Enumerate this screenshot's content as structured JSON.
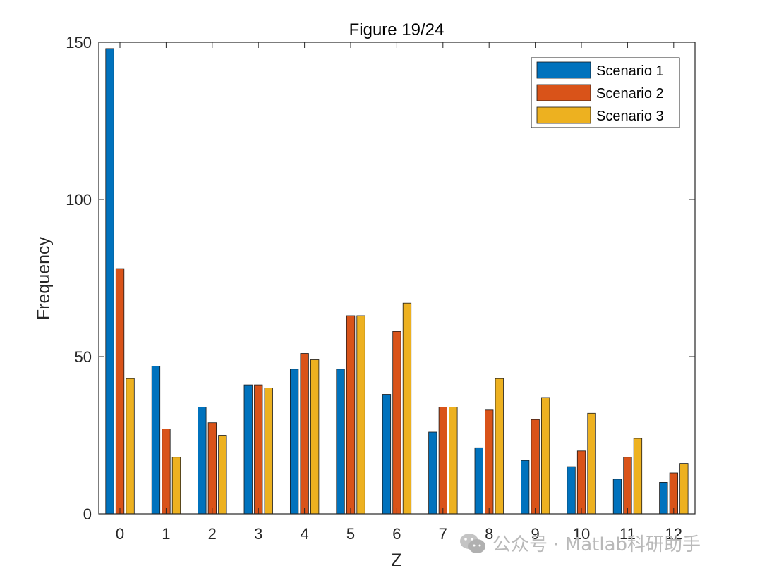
{
  "chart_data": {
    "type": "bar",
    "title": "Figure 19/24",
    "xlabel": "Z",
    "ylabel": "Frequency",
    "categories": [
      "0",
      "1",
      "2",
      "3",
      "4",
      "5",
      "6",
      "7",
      "8",
      "9",
      "10",
      "11",
      "12"
    ],
    "ylim": [
      0,
      150
    ],
    "yticks": [
      0,
      50,
      100,
      150
    ],
    "legend_position": "top-right",
    "series": [
      {
        "name": "Scenario 1",
        "color": "#0072BD",
        "values": [
          148,
          47,
          34,
          41,
          46,
          46,
          38,
          26,
          21,
          17,
          15,
          11,
          10
        ]
      },
      {
        "name": "Scenario 2",
        "color": "#D95319",
        "values": [
          78,
          27,
          29,
          41,
          51,
          63,
          58,
          34,
          33,
          30,
          20,
          18,
          13
        ]
      },
      {
        "name": "Scenario 3",
        "color": "#EDB120",
        "values": [
          43,
          18,
          25,
          40,
          49,
          63,
          67,
          34,
          43,
          37,
          32,
          24,
          16
        ]
      }
    ]
  },
  "watermark": {
    "text": "公众号 · Matlab科研助手",
    "icon": "wechat-icon"
  }
}
